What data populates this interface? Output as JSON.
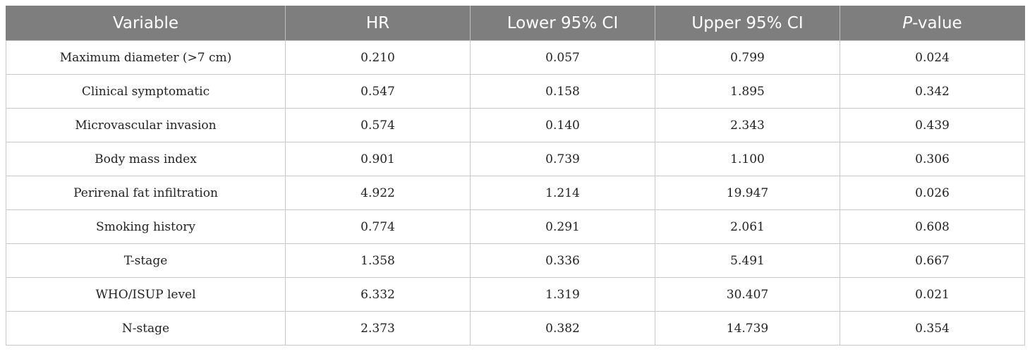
{
  "table": {
    "headers": [
      {
        "text": "Variable"
      },
      {
        "text": "HR"
      },
      {
        "text": "Lower 95% CI"
      },
      {
        "text": "Upper 95% CI"
      },
      {
        "italic": "P",
        "rest": "-value"
      }
    ],
    "rows": [
      [
        "Maximum diameter (>7 cm)",
        "0.210",
        "0.057",
        "0.799",
        "0.024"
      ],
      [
        "Clinical symptomatic",
        "0.547",
        "0.158",
        "1.895",
        "0.342"
      ],
      [
        "Microvascular invasion",
        "0.574",
        "0.140",
        "2.343",
        "0.439"
      ],
      [
        "Body mass index",
        "0.901",
        "0.739",
        "1.100",
        "0.306"
      ],
      [
        "Perirenal fat infiltration",
        "4.922",
        "1.214",
        "19.947",
        "0.026"
      ],
      [
        "Smoking history",
        "0.774",
        "0.291",
        "2.061",
        "0.608"
      ],
      [
        "T-stage",
        "1.358",
        "0.336",
        "5.491",
        "0.667"
      ],
      [
        "WHO/ISUP level",
        "6.332",
        "1.319",
        "30.407",
        "0.021"
      ],
      [
        "N-stage",
        "2.373",
        "0.382",
        "14.739",
        "0.354"
      ]
    ]
  }
}
